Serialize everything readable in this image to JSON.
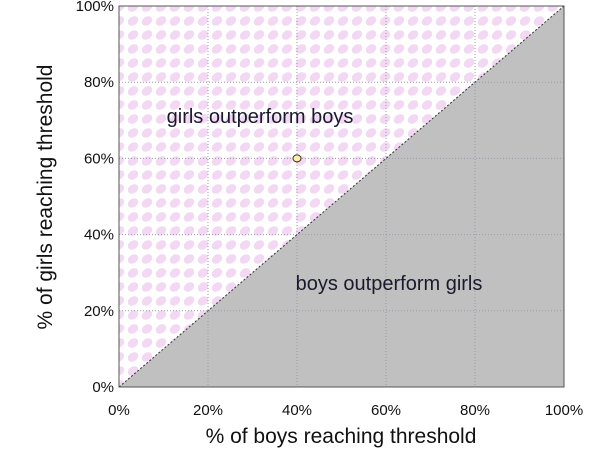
{
  "chart_data": {
    "type": "scatter",
    "title": "",
    "xlabel": "% of boys reaching threshold",
    "ylabel": "% of girls reaching threshold",
    "xlim": [
      0,
      100
    ],
    "ylim": [
      0,
      100
    ],
    "x_ticks": [
      "0%",
      "20%",
      "40%",
      "60%",
      "80%",
      "100%"
    ],
    "y_ticks": [
      "0%",
      "20%",
      "40%",
      "60%",
      "80%",
      "100%"
    ],
    "grid": true,
    "points": [
      {
        "x": 40,
        "y": 60
      }
    ],
    "reference_line": {
      "from": [
        0,
        0
      ],
      "to": [
        100,
        100
      ]
    },
    "regions": {
      "upper_label": "girls outperform boys",
      "lower_label": "boys outperform girls"
    },
    "colors": {
      "upper_region_pattern": "#f2d6f2",
      "lower_region": "#c0c0c0",
      "point_fill": "#ffeeaa",
      "point_stroke": "#333333",
      "grid": "#9a9aa8",
      "frame": "#555555"
    }
  }
}
